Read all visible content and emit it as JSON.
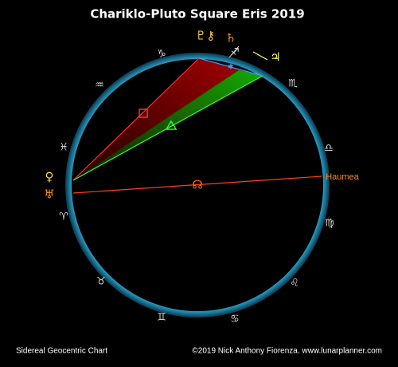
{
  "header": {
    "title": "Chariklo-Pluto Square Eris 2019"
  },
  "zodiac": [
    "♑",
    "♐",
    "♏",
    "♎",
    "♍",
    "♌",
    "♋",
    "♊",
    "♉",
    "♈",
    "♓",
    "♒"
  ],
  "planets": [
    "♇⚷",
    "♄",
    "♃",
    "♀",
    "♅",
    "☊"
  ],
  "labels": {
    "haumea": "Haumea"
  },
  "footer": {
    "left": "Sidereal Geocentric Chart",
    "right": "©2019 Nick Anthony Fiorenza. www.lunarplanner.com"
  }
}
